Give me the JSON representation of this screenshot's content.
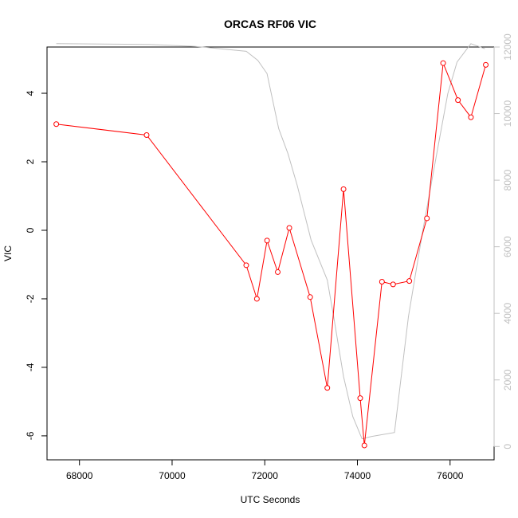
{
  "chart_data": {
    "type": "line",
    "title": "ORCAS RF06 VIC",
    "xlabel": "UTC Seconds",
    "ylabel": "VIC",
    "xlim": [
      67300,
      76950
    ],
    "ylim": [
      -6.7,
      5.35
    ],
    "y2lim": [
      -400,
      12000
    ],
    "x_ticks": [
      68000,
      70000,
      72000,
      74000,
      76000
    ],
    "y_ticks": [
      -6,
      -4,
      -2,
      0,
      2,
      4
    ],
    "y2_ticks": [
      0,
      2000,
      4000,
      6000,
      8000,
      10000,
      12000
    ],
    "series": [
      {
        "axis": "left",
        "color": "#ff0000",
        "marker": "open-circle",
        "points": [
          [
            67500,
            3.1
          ],
          [
            69450,
            2.78
          ],
          [
            71600,
            -1.02
          ],
          [
            71830,
            -2.0
          ],
          [
            72050,
            -0.3
          ],
          [
            72280,
            -1.22
          ],
          [
            72530,
            0.07
          ],
          [
            72980,
            -1.95
          ],
          [
            73350,
            -4.6
          ],
          [
            73700,
            1.2
          ],
          [
            74060,
            -4.9
          ],
          [
            74150,
            -6.28
          ],
          [
            74530,
            -1.5
          ],
          [
            74770,
            -1.58
          ],
          [
            75120,
            -1.48
          ],
          [
            75500,
            0.35
          ],
          [
            75850,
            4.88
          ],
          [
            76170,
            3.8
          ],
          [
            76450,
            3.3
          ],
          [
            76770,
            4.83
          ]
        ]
      },
      {
        "axis": "right",
        "color": "#c0c0c0",
        "marker": "none",
        "points": [
          [
            67500,
            12100
          ],
          [
            69500,
            12080
          ],
          [
            70500,
            12020
          ],
          [
            71400,
            11900
          ],
          [
            71600,
            11870
          ],
          [
            71850,
            11600
          ],
          [
            72050,
            11200
          ],
          [
            72300,
            9550
          ],
          [
            72500,
            8800
          ],
          [
            72700,
            7850
          ],
          [
            73000,
            6200
          ],
          [
            73350,
            5000
          ],
          [
            73500,
            3800
          ],
          [
            73700,
            2100
          ],
          [
            73900,
            900
          ],
          [
            74100,
            230
          ],
          [
            74300,
            300
          ],
          [
            74800,
            420
          ],
          [
            75100,
            3900
          ],
          [
            75400,
            6400
          ],
          [
            75700,
            8700
          ],
          [
            75950,
            10600
          ],
          [
            76150,
            11550
          ],
          [
            76450,
            12100
          ],
          [
            76750,
            11950
          ]
        ]
      }
    ]
  }
}
